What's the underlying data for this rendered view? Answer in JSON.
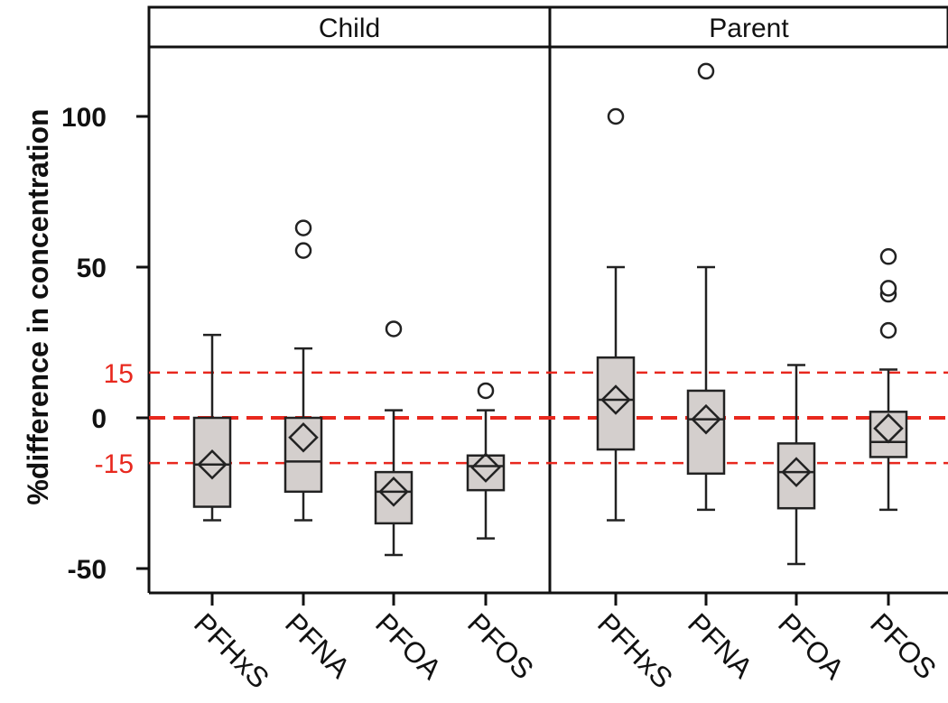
{
  "chart_data": {
    "type": "box",
    "ylabel": "%difference in concentration",
    "yticks": [
      100,
      50,
      0,
      -50
    ],
    "yticks_display": [
      "100",
      "50",
      "0",
      "-50"
    ],
    "ylim": [
      -58,
      124
    ],
    "reference_lines": [
      {
        "value": 15,
        "label": "15",
        "style": "dashed",
        "color": "#e8281e"
      },
      {
        "value": 0,
        "label": "0",
        "style": "dashed-thick",
        "color": "#e8281e"
      },
      {
        "value": -15,
        "label": "-15",
        "style": "dashed",
        "color": "#e8281e"
      }
    ],
    "categories": [
      "PFHxS",
      "PFNA",
      "PFOA",
      "PFOS"
    ],
    "panels": [
      {
        "title": "Child",
        "boxes": [
          {
            "category": "PFHxS",
            "whisker_low": -34,
            "q1": -29.5,
            "median": -15.5,
            "q3": 0,
            "whisker_high": 27.5,
            "mean": -15.5,
            "outliers": []
          },
          {
            "category": "PFNA",
            "whisker_low": -34,
            "q1": -24.5,
            "median": -14.5,
            "q3": 0,
            "whisker_high": 23,
            "mean": -6.5,
            "outliers": [
              55.5,
              63
            ]
          },
          {
            "category": "PFOA",
            "whisker_low": -45.5,
            "q1": -35,
            "median": -24.5,
            "q3": -18,
            "whisker_high": 2.5,
            "mean": -24.5,
            "outliers": [
              29.5
            ]
          },
          {
            "category": "PFOS",
            "whisker_low": -40,
            "q1": -24,
            "median": -16,
            "q3": -12.5,
            "whisker_high": 2.5,
            "mean": -16.5,
            "outliers": [
              9
            ]
          }
        ]
      },
      {
        "title": "Parent",
        "boxes": [
          {
            "category": "PFHxS",
            "whisker_low": -34,
            "q1": -10.5,
            "median": 6,
            "q3": 20,
            "whisker_high": 50,
            "mean": 6,
            "outliers": [
              100
            ]
          },
          {
            "category": "PFNA",
            "whisker_low": -30.5,
            "q1": -18.5,
            "median": -0.5,
            "q3": 9,
            "whisker_high": 50,
            "mean": -0.5,
            "outliers": [
              115
            ]
          },
          {
            "category": "PFOA",
            "whisker_low": -48.5,
            "q1": -30,
            "median": -18,
            "q3": -8.5,
            "whisker_high": 17.5,
            "mean": -18,
            "outliers": []
          },
          {
            "category": "PFOS",
            "whisker_low": -30.5,
            "q1": -13,
            "median": -8,
            "q3": 2,
            "whisker_high": 16,
            "mean": -3.5,
            "outliers": [
              29,
              41,
              43,
              53.5
            ]
          }
        ]
      }
    ]
  }
}
